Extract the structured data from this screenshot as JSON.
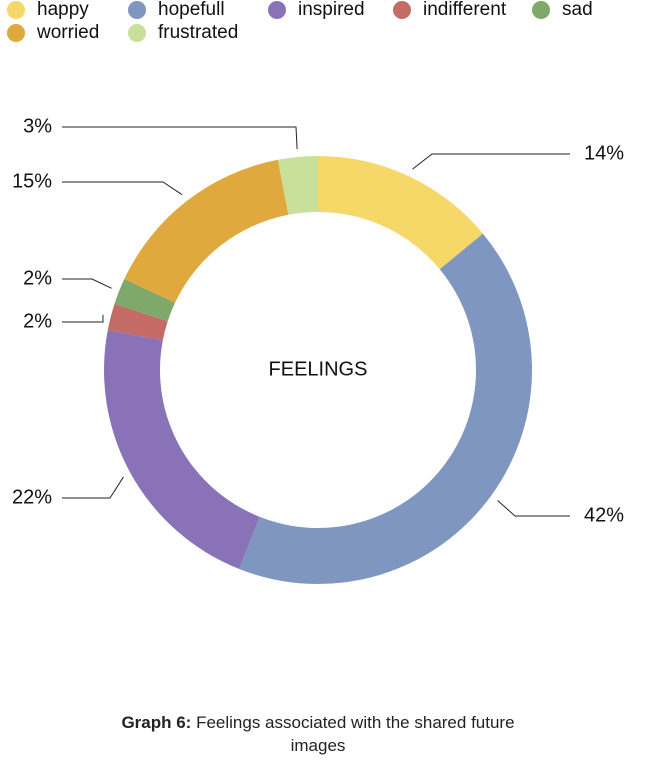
{
  "chart_data": {
    "type": "pie",
    "center_label": "FEELINGS",
    "categories": [
      "happy",
      "hopefull",
      "inspired",
      "indifferent",
      "sad",
      "worried",
      "frustrated"
    ],
    "values": [
      14,
      42,
      22,
      2,
      2,
      15,
      3
    ],
    "value_labels": [
      "14%",
      "42%",
      "22%",
      "2%",
      "2%",
      "15%",
      "3%"
    ],
    "colors": [
      "#f5d867",
      "#7f96c0",
      "#8a72b8",
      "#c46b65",
      "#7fa86b",
      "#e0a93d",
      "#c9e09a"
    ],
    "caption": {
      "label": "Graph 6:",
      "text": "Feelings associated with the shared future images"
    }
  }
}
